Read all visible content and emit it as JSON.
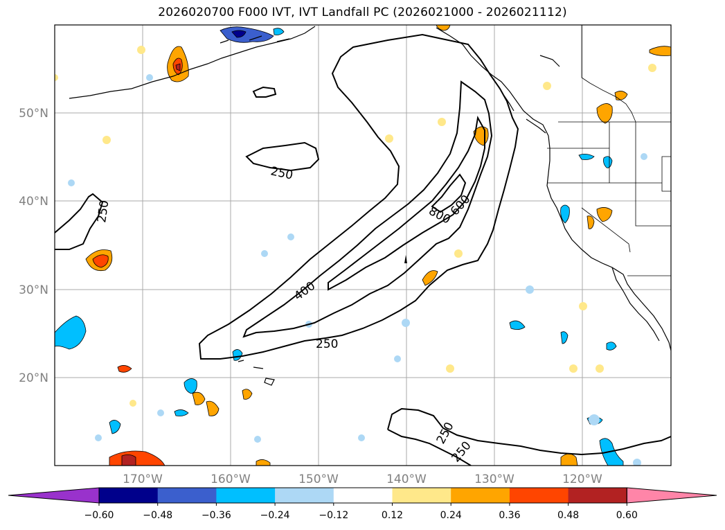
{
  "title": "2026020700 F000 IVT, IVT Landfall PC (2026021000 - 2026021112)",
  "map": {
    "lat_labels": [
      "50°N",
      "40°N",
      "30°N",
      "20°N"
    ],
    "lon_labels": [
      "170°W",
      "160°W",
      "150°W",
      "140°W",
      "130°W",
      "120°W"
    ],
    "contour_labels": [
      "250",
      "250",
      "250",
      "400",
      "600",
      "800",
      "250",
      "250"
    ],
    "label_color": "#808080"
  },
  "colorbar": {
    "tick_labels": [
      "−0.60",
      "−0.48",
      "−0.36",
      "−0.24",
      "−0.12",
      "0.12",
      "0.24",
      "0.36",
      "0.48",
      "0.60"
    ],
    "colors": [
      "#9932cc",
      "#00008b",
      "#3b5fcd",
      "#00bfff",
      "#add8f5",
      "#ffffff",
      "#ffe88a",
      "#ffa500",
      "#ff4500",
      "#b22222",
      "#ff85a8"
    ]
  }
}
